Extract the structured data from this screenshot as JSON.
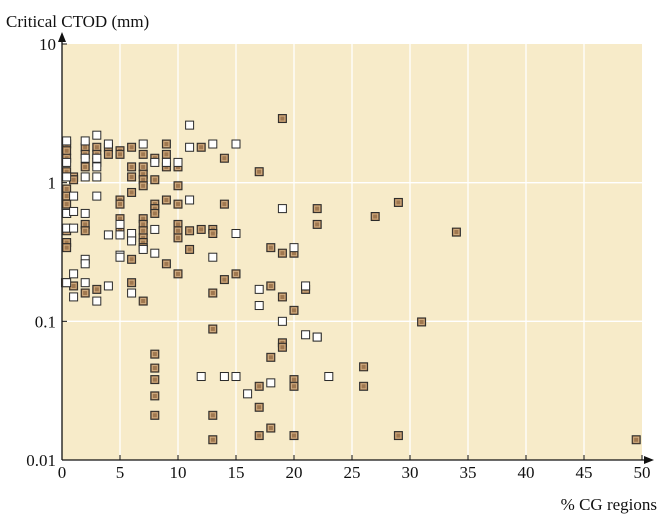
{
  "chart_data": {
    "type": "scatter",
    "ylabel": "Critical CTOD (mm)",
    "xlabel": "% CG regions",
    "xlim": [
      0,
      50
    ],
    "ylim": [
      0.01,
      10
    ],
    "y_scale": "log",
    "x_ticks": [
      "0",
      "5",
      "10",
      "15",
      "20",
      "25",
      "30",
      "35",
      "40",
      "45",
      "50"
    ],
    "y_ticks": [
      "0.01",
      "0.1",
      "1",
      "10"
    ],
    "grid": true,
    "colors": {
      "plot_bg": "#f7ebc9",
      "grid": "#ffffff",
      "filled_marker": "#a07850",
      "open_marker": "#ffffff",
      "marker_edge": "#2a2a2a"
    },
    "series": [
      {
        "marker": "filled",
        "points": [
          [
            0.3,
            0.19
          ],
          [
            0.4,
            1.9
          ],
          [
            0.4,
            1.7
          ],
          [
            0.4,
            1.5
          ],
          [
            0.4,
            1.2
          ],
          [
            0.4,
            0.9
          ],
          [
            0.4,
            0.8
          ],
          [
            0.4,
            0.7
          ],
          [
            0.4,
            0.6
          ],
          [
            0.4,
            0.45
          ],
          [
            0.4,
            0.37
          ],
          [
            0.4,
            0.34
          ],
          [
            1,
            1.1
          ],
          [
            1,
            1.05
          ],
          [
            1,
            0.18
          ],
          [
            2,
            1.8
          ],
          [
            2,
            1.6
          ],
          [
            2,
            1.3
          ],
          [
            2,
            0.5
          ],
          [
            2,
            0.45
          ],
          [
            2,
            0.16
          ],
          [
            3,
            1.8
          ],
          [
            3,
            1.6
          ],
          [
            3,
            1.4
          ],
          [
            3,
            0.17
          ],
          [
            4,
            1.8
          ],
          [
            4,
            1.6
          ],
          [
            5,
            1.7
          ],
          [
            5,
            1.6
          ],
          [
            5,
            0.75
          ],
          [
            5,
            0.7
          ],
          [
            5,
            0.55
          ],
          [
            5,
            0.45
          ],
          [
            6,
            1.8
          ],
          [
            6,
            1.3
          ],
          [
            6,
            1.1
          ],
          [
            6,
            0.85
          ],
          [
            6,
            0.4
          ],
          [
            6,
            0.28
          ],
          [
            6,
            0.19
          ],
          [
            7,
            1.6
          ],
          [
            7,
            1.3
          ],
          [
            7,
            1.15
          ],
          [
            7,
            1.05
          ],
          [
            7,
            0.95
          ],
          [
            7,
            0.55
          ],
          [
            7,
            0.5
          ],
          [
            7,
            0.45
          ],
          [
            7,
            0.4
          ],
          [
            7,
            0.37
          ],
          [
            7,
            0.34
          ],
          [
            7,
            0.14
          ],
          [
            8,
            1.5
          ],
          [
            8,
            1.05
          ],
          [
            8,
            0.7
          ],
          [
            8,
            0.65
          ],
          [
            8,
            0.6
          ],
          [
            8,
            0.058
          ],
          [
            8,
            0.046
          ],
          [
            8,
            0.038
          ],
          [
            8,
            0.029
          ],
          [
            8,
            0.021
          ],
          [
            9,
            1.9
          ],
          [
            9,
            1.6
          ],
          [
            9,
            1.3
          ],
          [
            9,
            0.75
          ],
          [
            9,
            0.26
          ],
          [
            10,
            1.3
          ],
          [
            10,
            0.95
          ],
          [
            10,
            0.7
          ],
          [
            10,
            0.5
          ],
          [
            10,
            0.45
          ],
          [
            10,
            0.4
          ],
          [
            10,
            0.22
          ],
          [
            11,
            0.45
          ],
          [
            11,
            0.33
          ],
          [
            12,
            1.8
          ],
          [
            12,
            0.46
          ],
          [
            13,
            0.46
          ],
          [
            13,
            0.43
          ],
          [
            13,
            0.16
          ],
          [
            13,
            0.088
          ],
          [
            13,
            0.021
          ],
          [
            13,
            0.014
          ],
          [
            14,
            1.5
          ],
          [
            14,
            0.7
          ],
          [
            14,
            0.2
          ],
          [
            15,
            0.22
          ],
          [
            17,
            1.2
          ],
          [
            17,
            0.034
          ],
          [
            17,
            0.024
          ],
          [
            17,
            0.015
          ],
          [
            18,
            0.34
          ],
          [
            18,
            0.18
          ],
          [
            18,
            0.055
          ],
          [
            18,
            0.017
          ],
          [
            19,
            2.9
          ],
          [
            19,
            0.31
          ],
          [
            19,
            0.15
          ],
          [
            19,
            0.07
          ],
          [
            19,
            0.065
          ],
          [
            20,
            0.31
          ],
          [
            20,
            0.12
          ],
          [
            20,
            0.038
          ],
          [
            20,
            0.034
          ],
          [
            20,
            0.015
          ],
          [
            21,
            0.17
          ],
          [
            22,
            0.65
          ],
          [
            22,
            0.5
          ],
          [
            22,
            0.077
          ],
          [
            26,
            0.047
          ],
          [
            26,
            0.034
          ],
          [
            27,
            0.57
          ],
          [
            29,
            0.72
          ],
          [
            29,
            0.015
          ],
          [
            31,
            0.099
          ],
          [
            34,
            0.44
          ],
          [
            49.5,
            0.014
          ]
        ]
      },
      {
        "marker": "open",
        "points": [
          [
            0.4,
            2
          ],
          [
            0.4,
            1.4
          ],
          [
            0.4,
            1.1
          ],
          [
            0.4,
            0.6
          ],
          [
            0.4,
            0.47
          ],
          [
            0.4,
            0.19
          ],
          [
            1,
            0.8
          ],
          [
            1,
            0.62
          ],
          [
            1,
            0.47
          ],
          [
            1,
            0.22
          ],
          [
            1,
            0.15
          ],
          [
            2,
            2
          ],
          [
            2,
            1.5
          ],
          [
            2,
            1.1
          ],
          [
            2,
            0.6
          ],
          [
            2,
            0.28
          ],
          [
            2,
            0.26
          ],
          [
            2,
            0.19
          ],
          [
            3,
            2.2
          ],
          [
            3,
            1.5
          ],
          [
            3,
            1.3
          ],
          [
            3,
            1.1
          ],
          [
            3,
            0.8
          ],
          [
            3,
            0.14
          ],
          [
            4,
            1.9
          ],
          [
            4,
            0.42
          ],
          [
            4,
            0.18
          ],
          [
            5,
            0.5
          ],
          [
            5,
            0.42
          ],
          [
            5,
            0.3
          ],
          [
            5,
            0.29
          ],
          [
            6,
            0.43
          ],
          [
            6,
            0.38
          ],
          [
            6,
            0.16
          ],
          [
            7,
            1.9
          ],
          [
            7,
            0.33
          ],
          [
            8,
            1.4
          ],
          [
            8,
            0.46
          ],
          [
            8,
            0.31
          ],
          [
            9,
            1.4
          ],
          [
            10,
            1.4
          ],
          [
            11,
            2.6
          ],
          [
            11,
            1.8
          ],
          [
            11,
            0.75
          ],
          [
            12,
            0.04
          ],
          [
            13,
            1.9
          ],
          [
            13,
            0.29
          ],
          [
            14,
            0.04
          ],
          [
            15,
            1.9
          ],
          [
            15,
            0.43
          ],
          [
            15,
            0.04
          ],
          [
            16,
            0.03
          ],
          [
            17,
            0.17
          ],
          [
            17,
            0.13
          ],
          [
            18,
            0.036
          ],
          [
            19,
            0.65
          ],
          [
            19,
            0.1
          ],
          [
            20,
            0.34
          ],
          [
            21,
            0.18
          ],
          [
            21,
            0.08
          ],
          [
            22,
            0.077
          ],
          [
            23,
            0.04
          ]
        ]
      }
    ]
  }
}
